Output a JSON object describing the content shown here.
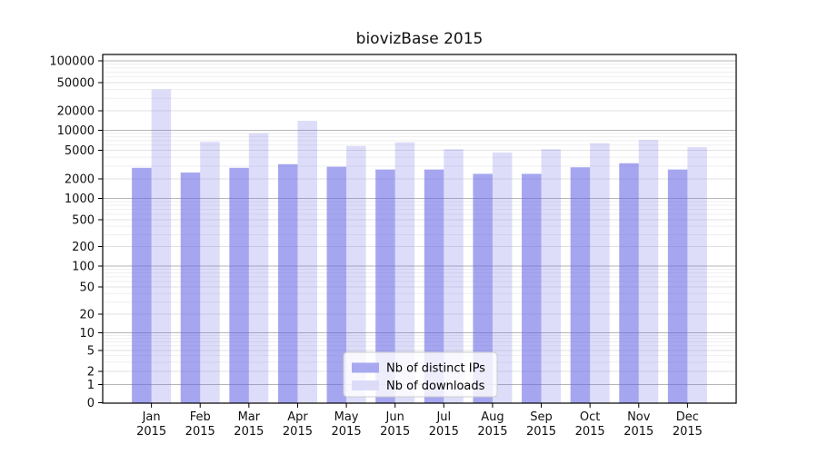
{
  "title": "biovizBase 2015",
  "chart_data": {
    "type": "bar",
    "title": "biovizBase 2015",
    "categories": [
      "Jan 2015",
      "Feb 2015",
      "Mar 2015",
      "Apr 2015",
      "May 2015",
      "Jun 2015",
      "Jul 2015",
      "Aug 2015",
      "Sep 2015",
      "Oct 2015",
      "Nov 2015",
      "Dec 2015"
    ],
    "x_labels": [
      {
        "line1": "Jan",
        "line2": "2015"
      },
      {
        "line1": "Feb",
        "line2": "2015"
      },
      {
        "line1": "Mar",
        "line2": "2015"
      },
      {
        "line1": "Apr",
        "line2": "2015"
      },
      {
        "line1": "May",
        "line2": "2015"
      },
      {
        "line1": "Jun",
        "line2": "2015"
      },
      {
        "line1": "Jul",
        "line2": "2015"
      },
      {
        "line1": "Aug",
        "line2": "2015"
      },
      {
        "line1": "Sep",
        "line2": "2015"
      },
      {
        "line1": "Oct",
        "line2": "2015"
      },
      {
        "line1": "Nov",
        "line2": "2015"
      },
      {
        "line1": "Dec",
        "line2": "2015"
      }
    ],
    "series": [
      {
        "name": "Nb of distinct IPs",
        "legend_color": "#a8a8f1",
        "fill_opacity": 0.58,
        "values": [
          2850,
          2450,
          2850,
          3200,
          2950,
          2700,
          2700,
          2350,
          2350,
          2900,
          3300,
          2700
        ]
      },
      {
        "name": "Nb of downloads",
        "legend_color": "#dcdcf9",
        "fill_opacity": 0.22,
        "values": [
          40000,
          6700,
          9000,
          14000,
          5800,
          6600,
          5200,
          4650,
          5200,
          6400,
          7200,
          5600
        ]
      }
    ],
    "bar_base_color": "#6666e6",
    "yscale": "symlog",
    "ylim": [
      0,
      120000
    ],
    "y_ticks": [
      0,
      1,
      2,
      5,
      10,
      20,
      50,
      100,
      200,
      500,
      1000,
      2000,
      5000,
      10000,
      20000,
      50000,
      100000
    ],
    "grid": true,
    "legend_position": "lower center",
    "grid_major_color": "#b6b6b6",
    "grid_labeled_color": "#e2e2e2",
    "grid_minor_color": "#efefef",
    "axis_color": "#000000",
    "text_color": "#111111"
  }
}
